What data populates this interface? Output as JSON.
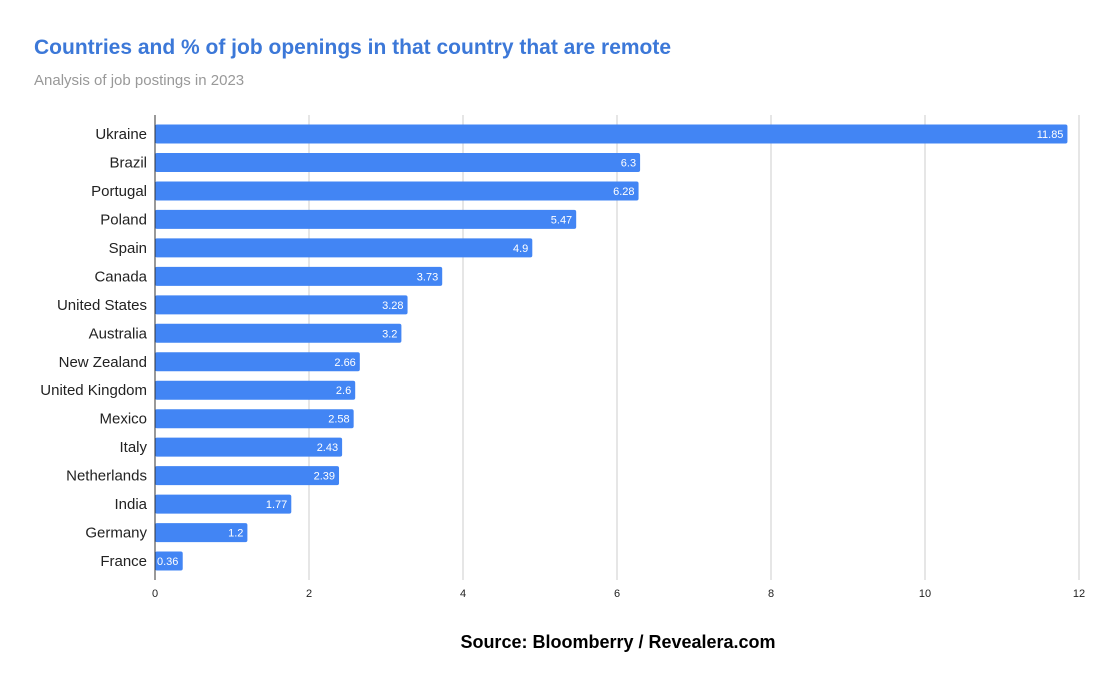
{
  "chart_data": {
    "type": "bar",
    "orientation": "horizontal",
    "title": "Countries and % of job openings in that country that are remote",
    "subtitle": "Analysis of job postings in 2023",
    "source": "Source: Bloomberry / Revealera.com",
    "categories": [
      "Ukraine",
      "Brazil",
      "Portugal",
      "Poland",
      "Spain",
      "Canada",
      "United States",
      "Australia",
      "New Zealand",
      "United Kingdom",
      "Mexico",
      "Italy",
      "Netherlands",
      "India",
      "Germany",
      "France"
    ],
    "values": [
      11.85,
      6.3,
      6.28,
      5.47,
      4.9,
      3.73,
      3.28,
      3.2,
      2.66,
      2.6,
      2.58,
      2.43,
      2.39,
      1.77,
      1.2,
      0.36
    ],
    "xlim": [
      0,
      12
    ],
    "xticks": [
      0,
      2,
      4,
      6,
      8,
      10,
      12
    ],
    "grid": true,
    "data_labels": true,
    "colors": {
      "bar": "#4285f4",
      "title": "#3c78d8",
      "subtitle": "#999999",
      "grid": "#cccccc"
    }
  }
}
